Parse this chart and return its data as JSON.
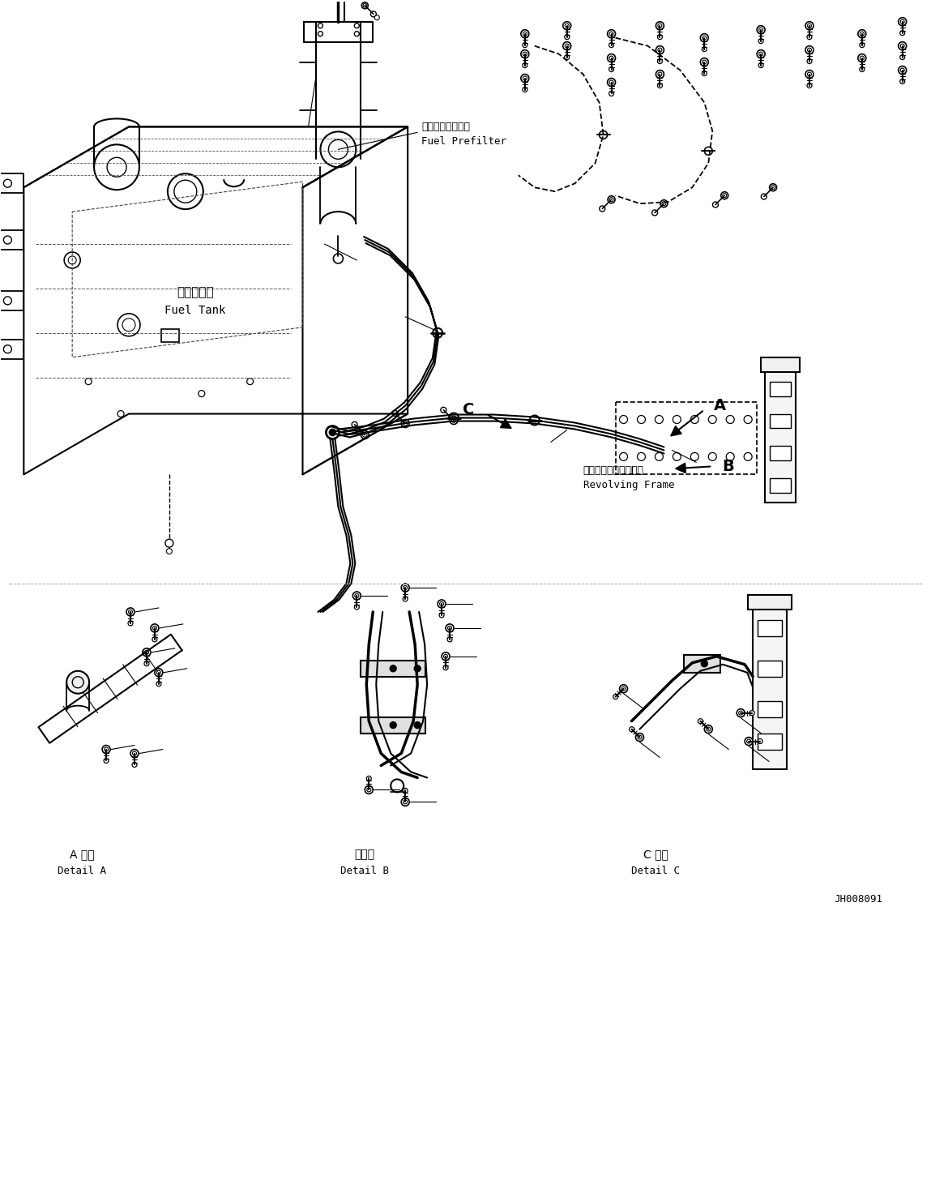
{
  "bg_color": "#ffffff",
  "line_color": "#000000",
  "title_code": "JH008091",
  "labels": {
    "fuel_tank_jp": "燃料タンク",
    "fuel_tank_en": "Fuel Tank",
    "fuel_prefilter_jp": "燃料プレフィルタ",
    "fuel_prefilter_en": "Fuel Prefilter",
    "revolving_frame_jp": "レボルビングフレーム",
    "revolving_frame_en": "Revolving Frame",
    "detail_a_jp": "A 詳細",
    "detail_a_en": "Detail A",
    "detail_b_jp": "日詳細",
    "detail_b_en": "Detail B",
    "detail_c_jp": "C 詳細",
    "detail_c_en": "Detail C"
  },
  "figsize": [
    11.49,
    14.62
  ],
  "dpi": 100
}
